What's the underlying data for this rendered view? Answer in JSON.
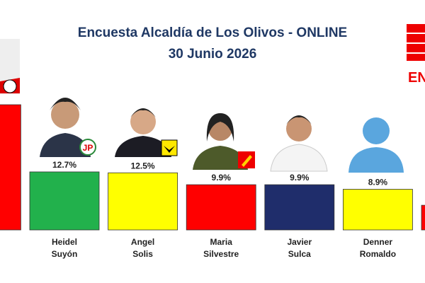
{
  "chart_data": {
    "type": "bar",
    "title": "Encuesta Alcaldía de Los Olivos - ONLINE",
    "subtitle": "30 Junio 2026",
    "brand": "EN",
    "categories": [
      null,
      "Heidel Suyón",
      "Angel Solis",
      "Maria Silvestre",
      "Javier Sulca",
      "Denner Romaldo",
      null
    ],
    "values": [
      27.4,
      12.7,
      12.5,
      9.9,
      9.9,
      8.9,
      5.4
    ],
    "value_labels": [
      null,
      "12.7%",
      "12.5%",
      "9.9%",
      "9.9%",
      "8.9%",
      null
    ],
    "colors": [
      "#ff0000",
      "#22b14c",
      "#ffff00",
      "#ff0000",
      "#1f2d6b",
      "#ffff00",
      "#ff0000"
    ]
  }
}
